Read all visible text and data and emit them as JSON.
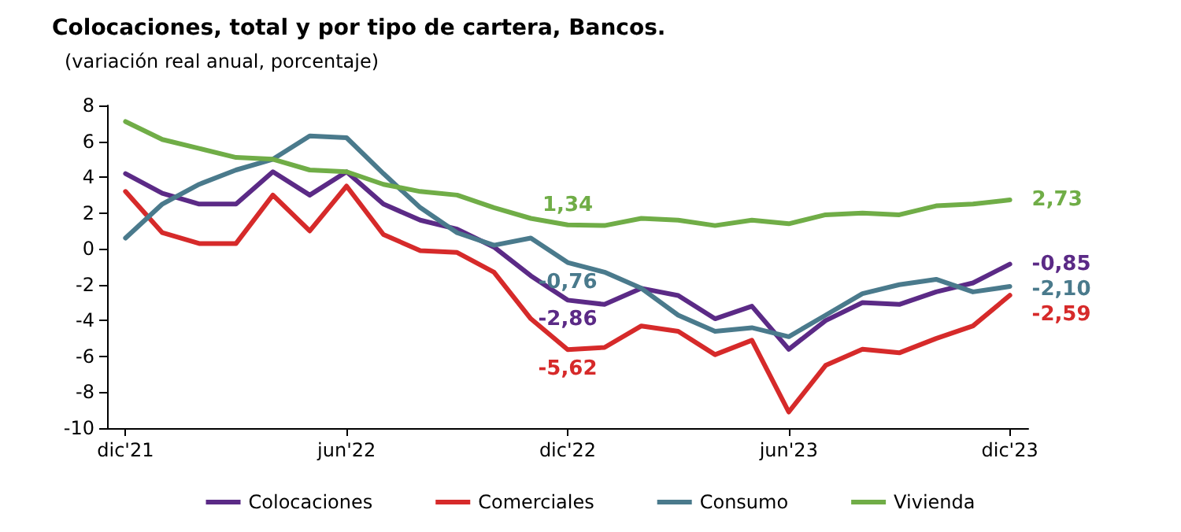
{
  "chart_data": {
    "type": "line",
    "title": "Colocaciones, total y por tipo de cartera, Bancos.",
    "subtitle": "(variación real anual, porcentaje)",
    "categories": [
      "dic'21",
      null,
      null,
      null,
      null,
      null,
      "jun'22",
      null,
      null,
      null,
      null,
      null,
      "dic'22",
      null,
      null,
      null,
      null,
      null,
      "jun'23",
      null,
      null,
      null,
      null,
      null,
      "dic'23"
    ],
    "series": [
      {
        "name": "Colocaciones",
        "color": "#5b2a86",
        "values": [
          4.2,
          3.1,
          2.5,
          2.5,
          4.3,
          3.0,
          4.3,
          2.5,
          1.6,
          1.1,
          0.1,
          -1.5,
          -2.86,
          -3.1,
          -2.2,
          -2.6,
          -3.9,
          -3.2,
          -5.6,
          -4.0,
          -3.0,
          -3.1,
          -2.4,
          -1.9,
          -0.85
        ],
        "value_labels": [
          null,
          null,
          null,
          null,
          null,
          null,
          null,
          null,
          null,
          null,
          null,
          null,
          "-2,86",
          null,
          null,
          null,
          null,
          null,
          null,
          null,
          null,
          null,
          null,
          null,
          "-0,85"
        ]
      },
      {
        "name": "Comerciales",
        "color": "#d62a2a",
        "values": [
          3.2,
          0.9,
          0.3,
          0.3,
          3.0,
          1.0,
          3.5,
          0.8,
          -0.1,
          -0.2,
          -1.3,
          -3.9,
          -5.62,
          -5.5,
          -4.3,
          -4.6,
          -5.9,
          -5.1,
          -9.1,
          -6.5,
          -5.6,
          -5.8,
          -5.0,
          -4.3,
          -2.59
        ],
        "value_labels": [
          null,
          null,
          null,
          null,
          null,
          null,
          null,
          null,
          null,
          null,
          null,
          null,
          "-5,62",
          null,
          null,
          null,
          null,
          null,
          null,
          null,
          null,
          null,
          null,
          null,
          "-2,59"
        ]
      },
      {
        "name": "Consumo",
        "color": "#4a7a8c",
        "values": [
          0.6,
          2.5,
          3.6,
          4.4,
          5.0,
          6.3,
          6.2,
          4.2,
          2.3,
          0.9,
          0.2,
          0.6,
          -0.76,
          -1.3,
          -2.2,
          -3.7,
          -4.6,
          -4.4,
          -4.9,
          -3.7,
          -2.5,
          -2.0,
          -1.7,
          -2.4,
          -2.1
        ],
        "value_labels": [
          null,
          null,
          null,
          null,
          null,
          null,
          null,
          null,
          null,
          null,
          null,
          null,
          "-0,76",
          null,
          null,
          null,
          null,
          null,
          null,
          null,
          null,
          null,
          null,
          null,
          "-2,10"
        ]
      },
      {
        "name": "Vivienda",
        "color": "#70ad47",
        "values": [
          7.1,
          6.1,
          5.6,
          5.1,
          5.0,
          4.4,
          4.3,
          3.6,
          3.2,
          3.0,
          2.3,
          1.7,
          1.34,
          1.3,
          1.7,
          1.6,
          1.3,
          1.6,
          1.4,
          1.9,
          2.0,
          1.9,
          2.4,
          2.5,
          2.73
        ],
        "value_labels": [
          null,
          null,
          null,
          null,
          null,
          null,
          null,
          null,
          null,
          null,
          null,
          null,
          "1,34",
          null,
          null,
          null,
          null,
          null,
          null,
          null,
          null,
          null,
          null,
          null,
          "2,73"
        ]
      }
    ],
    "ylim": [
      -10,
      8
    ],
    "yticks": [
      -10,
      -8,
      -6,
      -4,
      -2,
      0,
      2,
      4,
      6,
      8
    ],
    "grid": false,
    "legend": "bottom",
    "marker": "none",
    "line_style": "solid"
  }
}
